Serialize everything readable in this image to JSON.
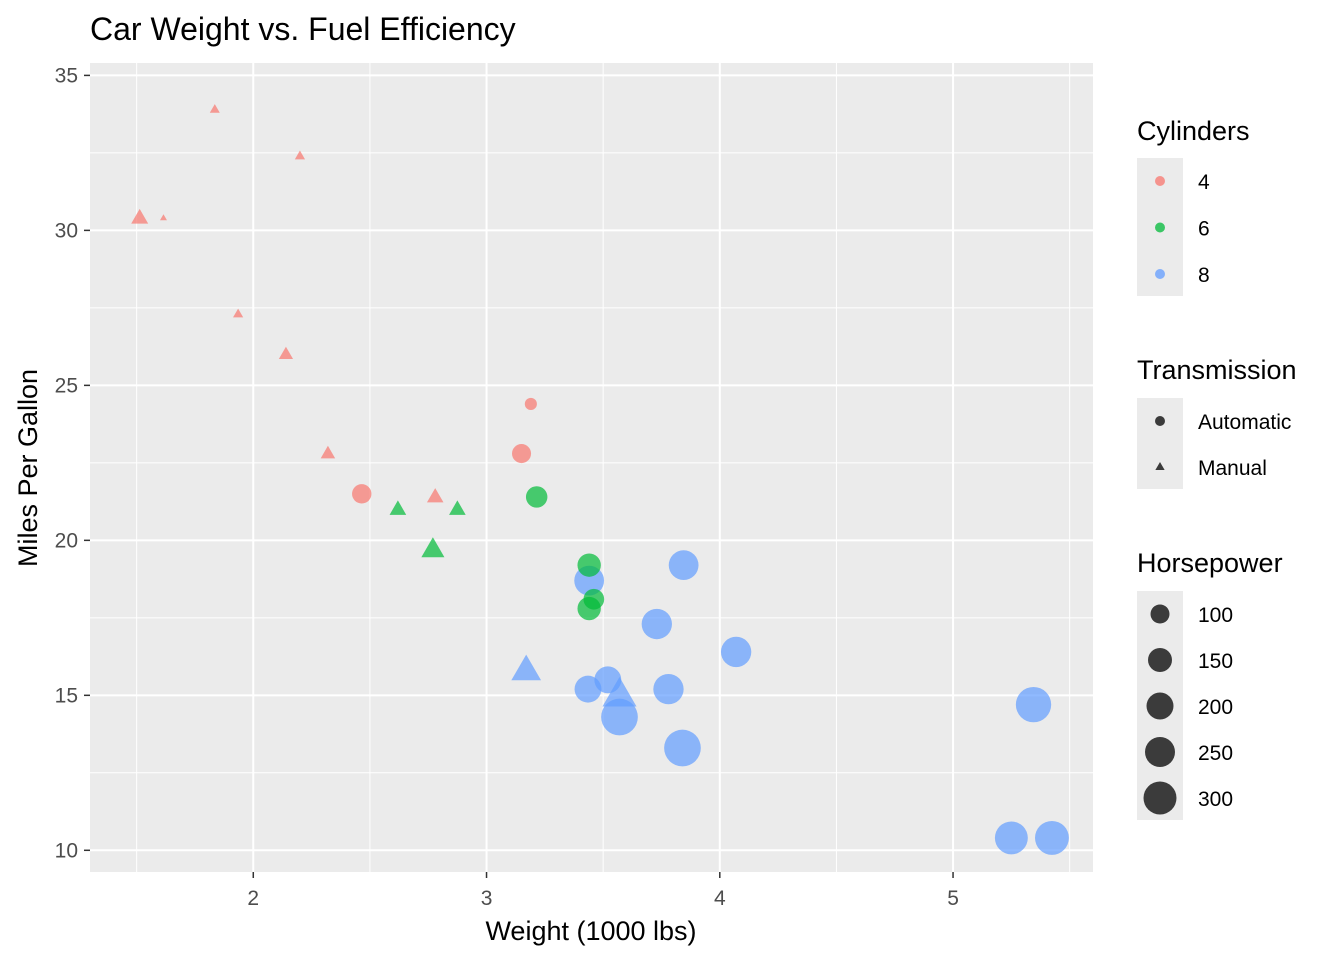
{
  "chart_data": {
    "type": "scatter",
    "title": "Car Weight vs. Fuel Efficiency",
    "xlabel": "Weight (1000 lbs)",
    "ylabel": "Miles Per Gallon",
    "xlim": [
      1.3,
      5.6
    ],
    "ylim": [
      9.3,
      35.4
    ],
    "x_ticks": [
      2,
      3,
      4,
      5
    ],
    "y_ticks": [
      10,
      15,
      20,
      25,
      30,
      35
    ],
    "grid": true,
    "background": "#ebebeb",
    "legend_position": "right",
    "legends": {
      "color": {
        "title": "Cylinders",
        "entries": [
          {
            "label": "4",
            "color": "#f8766d"
          },
          {
            "label": "6",
            "color": "#00ba38"
          },
          {
            "label": "8",
            "color": "#619cff"
          }
        ]
      },
      "shape": {
        "title": "Transmission",
        "entries": [
          {
            "label": "Automatic",
            "shape": "circle"
          },
          {
            "label": "Manual",
            "shape": "triangle"
          }
        ]
      },
      "size": {
        "title": "Horsepower",
        "entries": [
          {
            "label": "100",
            "value": 100
          },
          {
            "label": "150",
            "value": 150
          },
          {
            "label": "200",
            "value": 200
          },
          {
            "label": "250",
            "value": 250
          },
          {
            "label": "300",
            "value": 300
          }
        ]
      }
    },
    "points": [
      {
        "x": 2.62,
        "y": 21.0,
        "cyl": "6",
        "am": "Manual",
        "hp": 110
      },
      {
        "x": 2.875,
        "y": 21.0,
        "cyl": "6",
        "am": "Manual",
        "hp": 110
      },
      {
        "x": 2.32,
        "y": 22.8,
        "cyl": "4",
        "am": "Manual",
        "hp": 93
      },
      {
        "x": 3.215,
        "y": 21.4,
        "cyl": "6",
        "am": "Automatic",
        "hp": 110
      },
      {
        "x": 3.44,
        "y": 18.7,
        "cyl": "8",
        "am": "Automatic",
        "hp": 175
      },
      {
        "x": 3.46,
        "y": 18.1,
        "cyl": "6",
        "am": "Automatic",
        "hp": 105
      },
      {
        "x": 3.57,
        "y": 14.3,
        "cyl": "8",
        "am": "Automatic",
        "hp": 245
      },
      {
        "x": 3.19,
        "y": 24.4,
        "cyl": "4",
        "am": "Automatic",
        "hp": 62
      },
      {
        "x": 3.15,
        "y": 22.8,
        "cyl": "4",
        "am": "Automatic",
        "hp": 95
      },
      {
        "x": 3.44,
        "y": 19.2,
        "cyl": "6",
        "am": "Automatic",
        "hp": 123
      },
      {
        "x": 3.44,
        "y": 17.8,
        "cyl": "6",
        "am": "Automatic",
        "hp": 123
      },
      {
        "x": 4.07,
        "y": 16.4,
        "cyl": "8",
        "am": "Automatic",
        "hp": 180
      },
      {
        "x": 3.73,
        "y": 17.3,
        "cyl": "8",
        "am": "Automatic",
        "hp": 180
      },
      {
        "x": 3.78,
        "y": 15.2,
        "cyl": "8",
        "am": "Automatic",
        "hp": 180
      },
      {
        "x": 5.25,
        "y": 10.4,
        "cyl": "8",
        "am": "Automatic",
        "hp": 205
      },
      {
        "x": 5.424,
        "y": 10.4,
        "cyl": "8",
        "am": "Automatic",
        "hp": 215
      },
      {
        "x": 5.345,
        "y": 14.7,
        "cyl": "8",
        "am": "Automatic",
        "hp": 230
      },
      {
        "x": 2.2,
        "y": 32.4,
        "cyl": "4",
        "am": "Manual",
        "hp": 66
      },
      {
        "x": 1.615,
        "y": 30.4,
        "cyl": "4",
        "am": "Manual",
        "hp": 52
      },
      {
        "x": 1.835,
        "y": 33.9,
        "cyl": "4",
        "am": "Manual",
        "hp": 65
      },
      {
        "x": 2.465,
        "y": 21.5,
        "cyl": "4",
        "am": "Automatic",
        "hp": 97
      },
      {
        "x": 3.52,
        "y": 15.5,
        "cyl": "8",
        "am": "Automatic",
        "hp": 150
      },
      {
        "x": 3.435,
        "y": 15.2,
        "cyl": "8",
        "am": "Automatic",
        "hp": 150
      },
      {
        "x": 3.84,
        "y": 13.3,
        "cyl": "8",
        "am": "Automatic",
        "hp": 245
      },
      {
        "x": 3.845,
        "y": 19.2,
        "cyl": "8",
        "am": "Automatic",
        "hp": 175
      },
      {
        "x": 1.935,
        "y": 27.3,
        "cyl": "4",
        "am": "Manual",
        "hp": 66
      },
      {
        "x": 2.14,
        "y": 26.0,
        "cyl": "4",
        "am": "Manual",
        "hp": 91
      },
      {
        "x": 1.513,
        "y": 30.4,
        "cyl": "4",
        "am": "Manual",
        "hp": 113
      },
      {
        "x": 3.17,
        "y": 15.8,
        "cyl": "8",
        "am": "Manual",
        "hp": 264
      },
      {
        "x": 2.77,
        "y": 19.7,
        "cyl": "6",
        "am": "Manual",
        "hp": 175
      },
      {
        "x": 3.57,
        "y": 15.0,
        "cyl": "8",
        "am": "Manual",
        "hp": 335
      },
      {
        "x": 2.78,
        "y": 21.4,
        "cyl": "4",
        "am": "Manual",
        "hp": 109
      }
    ]
  }
}
